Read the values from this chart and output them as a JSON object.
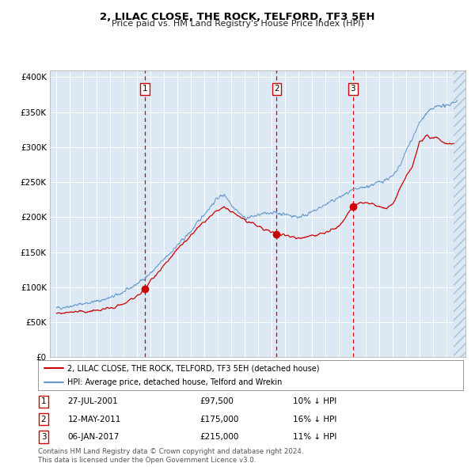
{
  "title1": "2, LILAC CLOSE, THE ROCK, TELFORD, TF3 5EH",
  "title2": "Price paid vs. HM Land Registry's House Price Index (HPI)",
  "bg_color": "#dce9f5",
  "hatch_color": "#b8cfe0",
  "red_line_color": "#cc0000",
  "blue_line_color": "#6699cc",
  "red_dot_color": "#cc0000",
  "grid_color": "#ffffff",
  "dashed_line_color": "#cc0000",
  "sale_dates": [
    2001.57,
    2011.36,
    2017.02
  ],
  "sale_prices": [
    97500,
    175000,
    215000
  ],
  "sale_labels": [
    "1",
    "2",
    "3"
  ],
  "sale_info": [
    {
      "label": "1",
      "date": "27-JUL-2001",
      "price": "£97,500",
      "note": "10% ↓ HPI"
    },
    {
      "label": "2",
      "date": "12-MAY-2011",
      "price": "£175,000",
      "note": "16% ↓ HPI"
    },
    {
      "label": "3",
      "date": "06-JAN-2017",
      "price": "£215,000",
      "note": "11% ↓ HPI"
    }
  ],
  "legend_line1": "2, LILAC CLOSE, THE ROCK, TELFORD, TF3 5EH (detached house)",
  "legend_line2": "HPI: Average price, detached house, Telford and Wrekin",
  "footer1": "Contains HM Land Registry data © Crown copyright and database right 2024.",
  "footer2": "This data is licensed under the Open Government Licence v3.0.",
  "ylim": [
    0,
    410000
  ],
  "xlim_start": 1994.5,
  "xlim_end": 2025.4,
  "yticks": [
    0,
    50000,
    100000,
    150000,
    200000,
    250000,
    300000,
    350000,
    400000
  ],
  "ytick_labels": [
    "£0",
    "£50K",
    "£100K",
    "£150K",
    "£200K",
    "£250K",
    "£300K",
    "£350K",
    "£400K"
  ],
  "hpi_anchors_x": [
    1995,
    1996,
    1997,
    1998,
    1999,
    2000,
    2001,
    2002,
    2003,
    2004,
    2005,
    2006,
    2007,
    2007.5,
    2008,
    2008.5,
    2009,
    2010,
    2011,
    2012,
    2013,
    2014,
    2015,
    2016,
    2017,
    2018,
    2019,
    2020,
    2020.5,
    2021,
    2021.5,
    2022,
    2022.5,
    2023,
    2023.5,
    2024,
    2024.5
  ],
  "hpi_anchors_y": [
    70000,
    73000,
    76500,
    80000,
    85000,
    93000,
    105000,
    120000,
    140000,
    160000,
    180000,
    205000,
    228000,
    232000,
    218000,
    208000,
    198000,
    203000,
    207000,
    204000,
    200000,
    207000,
    218000,
    228000,
    238000,
    243000,
    250000,
    258000,
    272000,
    295000,
    315000,
    335000,
    348000,
    355000,
    360000,
    358000,
    365000
  ],
  "red_anchors_x": [
    1995,
    1996,
    1997,
    1998,
    1999,
    2000,
    2001,
    2001.57,
    2002,
    2003,
    2004,
    2005,
    2006,
    2007,
    2007.5,
    2008,
    2008.5,
    2009,
    2009.5,
    2010,
    2010.5,
    2011,
    2011.36,
    2011.5,
    2012,
    2012.5,
    2013,
    2014,
    2015,
    2016,
    2017.02,
    2017.5,
    2018,
    2018.5,
    2019,
    2019.5,
    2020,
    2020.5,
    2021,
    2021.5,
    2022,
    2022.5,
    2023,
    2023.3,
    2023.7,
    2024,
    2024.5
  ],
  "red_anchors_y": [
    63000,
    64000,
    65000,
    67000,
    70000,
    76000,
    88000,
    97500,
    110000,
    132000,
    154000,
    174000,
    194000,
    210000,
    213000,
    208000,
    202000,
    196000,
    190000,
    187000,
    182000,
    178000,
    175000,
    177000,
    174000,
    172000,
    170000,
    174000,
    178000,
    186000,
    215000,
    220000,
    221000,
    218000,
    215000,
    212000,
    218000,
    240000,
    258000,
    275000,
    308000,
    315000,
    312000,
    315000,
    308000,
    305000,
    305000
  ]
}
